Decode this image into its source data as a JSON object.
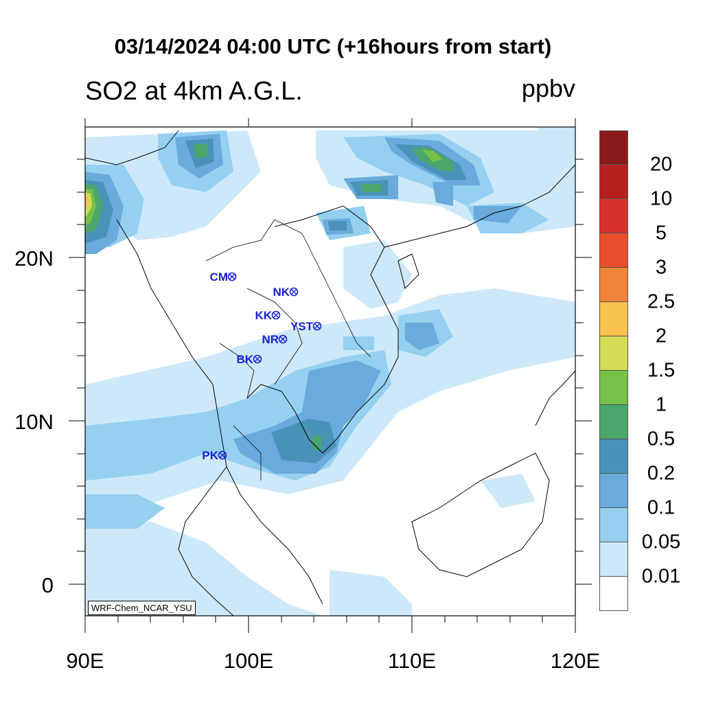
{
  "title": "03/14/2024 04:00 UTC (+16hours from start)",
  "subtitle": "SO2 at 4km A.G.L.",
  "units": "ppbv",
  "credit": "WRF-Chem_NCAR_YSU",
  "lon_ticks": [
    "90E",
    "100E",
    "110E",
    "120E"
  ],
  "lat_ticks": [
    "20N",
    "10N",
    "0"
  ],
  "colorbar": {
    "levels": [
      "20",
      "10",
      "5",
      "3",
      "2.5",
      "2",
      "1.5",
      "1",
      "0.5",
      "0.2",
      "0.1",
      "0.05",
      "0.01"
    ],
    "colors": [
      "#8b1a1a",
      "#b5201f",
      "#d7312a",
      "#e64f2b",
      "#f08438",
      "#f7c24e",
      "#d2dc54",
      "#76c147",
      "#4aa66a",
      "#4a93b8",
      "#6aaadc",
      "#95d0f0",
      "#cde9f9",
      "#ffffff"
    ]
  },
  "stations": [
    {
      "code": "CM"
    },
    {
      "code": "NK"
    },
    {
      "code": "KK"
    },
    {
      "code": "YST"
    },
    {
      "code": "NR"
    },
    {
      "code": "BK"
    },
    {
      "code": "PK"
    }
  ]
}
